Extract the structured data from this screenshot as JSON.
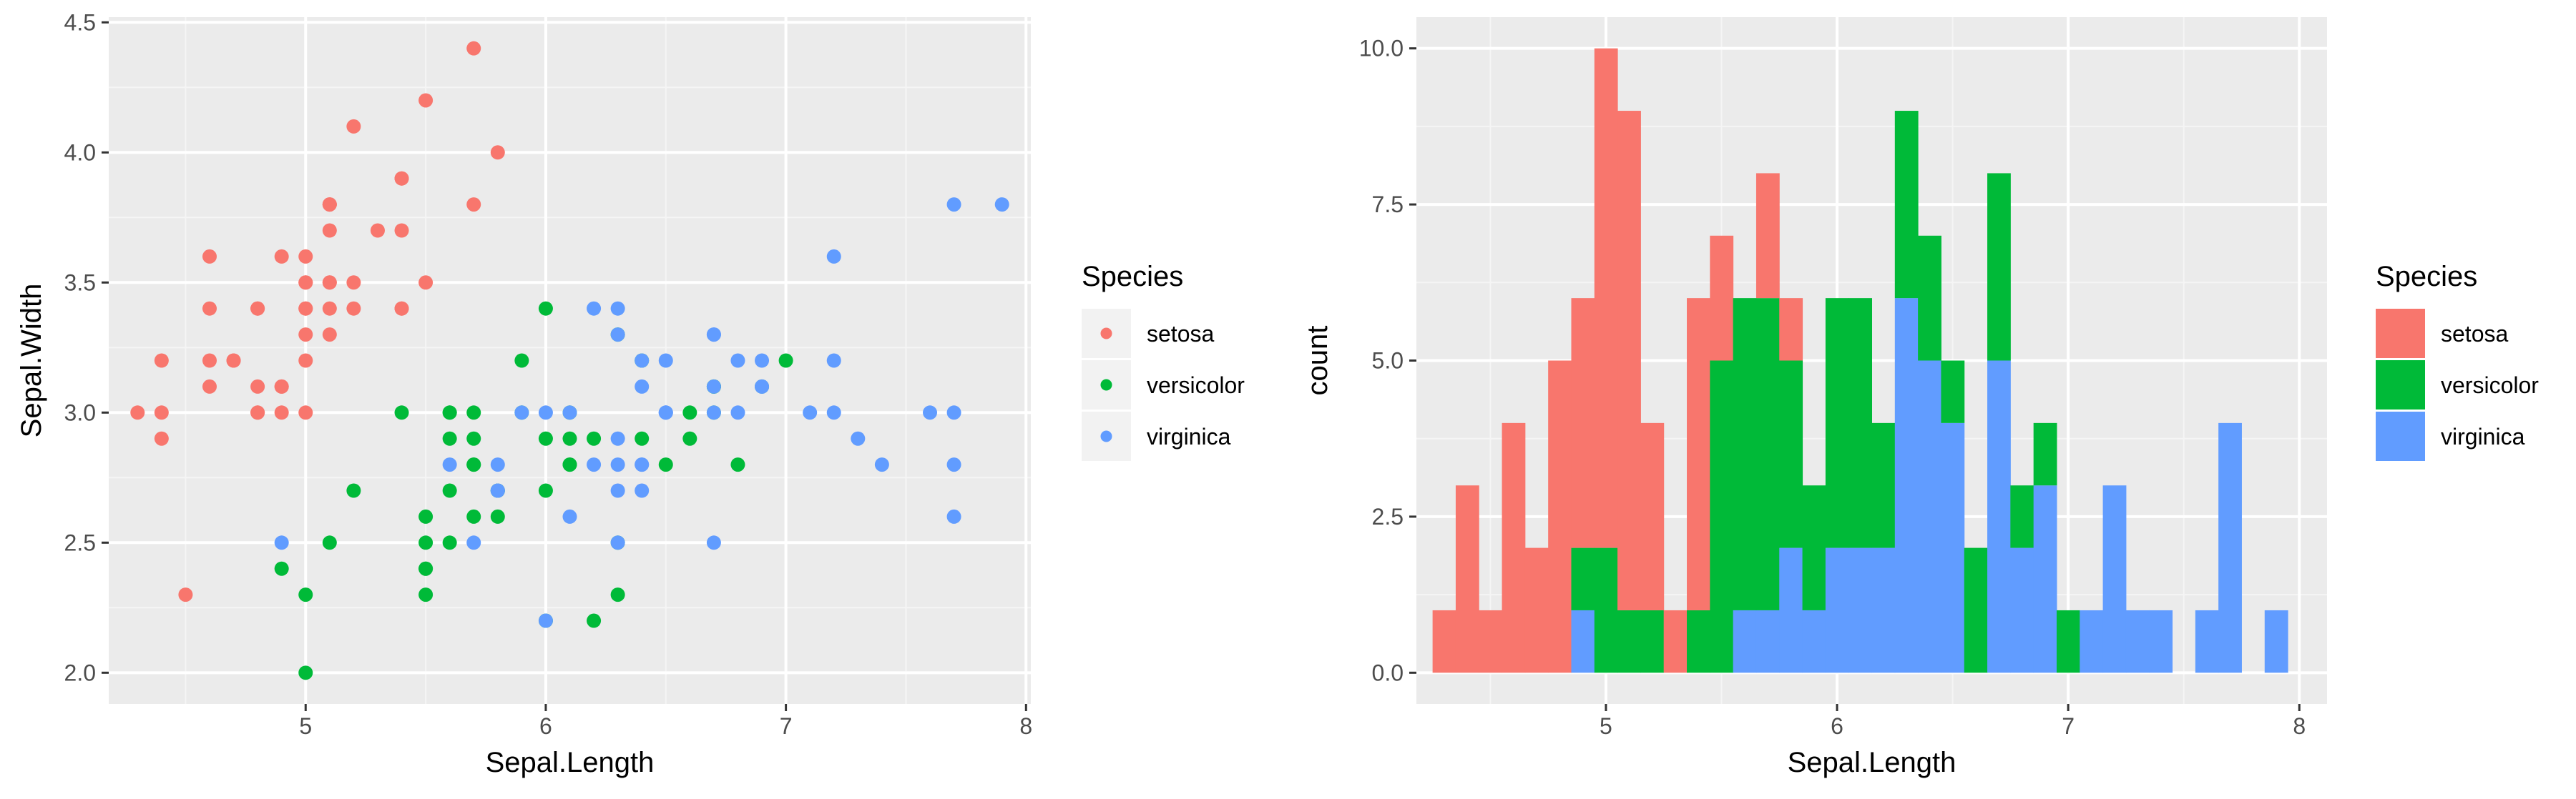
{
  "colors": {
    "setosa": "#F8766D",
    "versicolor": "#00BA38",
    "virginica": "#619CFF",
    "panel": "#EBEBEB",
    "grid_major": "#FFFFFF",
    "grid_minor": "#F5F5F5",
    "axis_text": "#4D4D4D",
    "title_text": "#000000",
    "legend_key": "#F2F2F2"
  },
  "legend": {
    "title": "Species",
    "entries": [
      "setosa",
      "versicolor",
      "virginica"
    ]
  },
  "chart_data": [
    {
      "type": "scatter",
      "title": "",
      "xlabel": "Sepal.Length",
      "ylabel": "Sepal.Width",
      "xlim": [
        4.18,
        8.02
      ],
      "ylim": [
        1.88,
        4.52
      ],
      "xticks": [
        5,
        6,
        7,
        8
      ],
      "xtick_labels": [
        "5",
        "6",
        "7",
        "8"
      ],
      "yticks": [
        2.0,
        2.5,
        3.0,
        3.5,
        4.0,
        4.5
      ],
      "ytick_labels": [
        "2.0",
        "2.5",
        "3.0",
        "3.5",
        "4.0",
        "4.5"
      ],
      "grid": true,
      "legend_placement": "right",
      "series": [
        {
          "name": "setosa",
          "x": [
            5.1,
            4.9,
            4.7,
            4.6,
            5.0,
            5.4,
            4.6,
            5.0,
            4.4,
            4.9,
            5.4,
            4.8,
            4.8,
            4.3,
            5.8,
            5.7,
            5.4,
            5.1,
            5.7,
            5.1,
            5.4,
            5.1,
            4.6,
            5.1,
            4.8,
            5.0,
            5.0,
            5.2,
            5.2,
            4.7,
            4.8,
            5.4,
            5.2,
            5.5,
            4.9,
            5.0,
            5.5,
            4.9,
            4.4,
            5.1,
            5.0,
            4.5,
            4.4,
            5.0,
            5.1,
            4.8,
            5.1,
            4.6,
            5.3,
            5.0
          ],
          "y": [
            3.5,
            3.0,
            3.2,
            3.1,
            3.6,
            3.9,
            3.4,
            3.4,
            2.9,
            3.1,
            3.7,
            3.4,
            3.0,
            3.0,
            4.0,
            4.4,
            3.9,
            3.5,
            3.8,
            3.8,
            3.4,
            3.7,
            3.6,
            3.3,
            3.4,
            3.0,
            3.4,
            3.5,
            3.4,
            3.2,
            3.1,
            3.4,
            4.1,
            4.2,
            3.1,
            3.2,
            3.5,
            3.6,
            3.0,
            3.4,
            3.5,
            2.3,
            3.2,
            3.5,
            3.8,
            3.0,
            3.8,
            3.2,
            3.7,
            3.3
          ]
        },
        {
          "name": "versicolor",
          "x": [
            7.0,
            6.4,
            6.9,
            5.5,
            6.5,
            5.7,
            6.3,
            4.9,
            6.6,
            5.2,
            5.0,
            5.9,
            6.0,
            6.1,
            5.6,
            6.7,
            5.6,
            5.8,
            6.2,
            5.6,
            5.9,
            6.1,
            6.3,
            6.1,
            6.4,
            6.6,
            6.8,
            6.7,
            6.0,
            5.7,
            5.5,
            5.5,
            5.8,
            6.0,
            5.4,
            6.0,
            6.7,
            6.3,
            5.6,
            5.5,
            5.5,
            6.1,
            5.8,
            5.0,
            5.6,
            5.7,
            5.7,
            6.2,
            5.1,
            5.7
          ],
          "y": [
            3.2,
            3.2,
            3.1,
            2.3,
            2.8,
            2.8,
            3.3,
            2.4,
            2.9,
            2.7,
            2.0,
            3.0,
            2.2,
            2.9,
            2.9,
            3.1,
            3.0,
            2.7,
            2.2,
            2.5,
            3.2,
            2.8,
            2.5,
            2.8,
            2.9,
            3.0,
            2.8,
            3.0,
            2.9,
            2.6,
            2.4,
            2.4,
            2.7,
            2.7,
            3.0,
            3.4,
            3.1,
            2.3,
            3.0,
            2.5,
            2.6,
            3.0,
            2.6,
            2.3,
            2.7,
            3.0,
            2.9,
            2.9,
            2.5,
            2.8
          ]
        },
        {
          "name": "virginica",
          "x": [
            6.3,
            5.8,
            7.1,
            6.3,
            6.5,
            7.6,
            4.9,
            7.3,
            6.7,
            7.2,
            6.5,
            6.4,
            6.8,
            5.7,
            5.8,
            6.4,
            6.5,
            7.7,
            7.7,
            6.0,
            6.9,
            5.6,
            7.7,
            6.3,
            6.7,
            7.2,
            6.2,
            6.1,
            6.4,
            7.2,
            7.4,
            7.9,
            6.4,
            6.3,
            6.1,
            7.7,
            6.3,
            6.4,
            6.0,
            6.9,
            6.7,
            6.9,
            5.8,
            6.8,
            6.7,
            6.7,
            6.3,
            6.5,
            6.2,
            5.9
          ],
          "y": [
            3.3,
            2.7,
            3.0,
            2.9,
            3.0,
            3.0,
            2.5,
            2.9,
            2.5,
            3.6,
            3.2,
            2.7,
            3.0,
            2.5,
            2.8,
            3.2,
            3.0,
            3.8,
            2.6,
            2.2,
            3.2,
            2.8,
            2.8,
            2.7,
            3.3,
            3.2,
            2.8,
            3.0,
            2.8,
            3.0,
            2.8,
            3.8,
            2.8,
            2.8,
            2.6,
            3.0,
            3.4,
            3.1,
            3.0,
            3.1,
            3.1,
            3.1,
            2.7,
            3.2,
            3.3,
            3.0,
            2.5,
            3.0,
            3.4,
            3.0
          ]
        }
      ]
    },
    {
      "type": "bar",
      "title": "",
      "xlabel": "Sepal.Length",
      "ylabel": "count",
      "stacking": "stacked",
      "bin_width": 0.1,
      "xlim": [
        4.18,
        8.12
      ],
      "ylim": [
        -0.5,
        10.5
      ],
      "xticks": [
        5,
        6,
        7,
        8
      ],
      "xtick_labels": [
        "5",
        "6",
        "7",
        "8"
      ],
      "yticks": [
        0,
        2.5,
        5,
        7.5,
        10
      ],
      "ytick_labels": [
        "0.0",
        "2.5",
        "5.0",
        "7.5",
        "10.0"
      ],
      "grid": true,
      "legend_placement": "right",
      "categories": [
        4.3,
        4.4,
        4.5,
        4.6,
        4.7,
        4.8,
        4.9,
        5.0,
        5.1,
        5.2,
        5.3,
        5.4,
        5.5,
        5.6,
        5.7,
        5.8,
        5.9,
        6.0,
        6.1,
        6.2,
        6.3,
        6.4,
        6.5,
        6.6,
        6.7,
        6.8,
        6.9,
        7.0,
        7.1,
        7.2,
        7.3,
        7.4,
        7.5,
        7.6,
        7.7,
        7.8,
        7.9
      ],
      "series": [
        {
          "name": "setosa",
          "values": [
            1,
            3,
            1,
            4,
            2,
            5,
            4,
            8,
            8,
            3,
            1,
            5,
            2,
            0,
            2,
            1,
            0,
            0,
            0,
            0,
            0,
            0,
            0,
            0,
            0,
            0,
            0,
            0,
            0,
            0,
            0,
            0,
            0,
            0,
            0,
            0,
            0
          ]
        },
        {
          "name": "versicolor",
          "values": [
            0,
            0,
            0,
            0,
            0,
            0,
            1,
            2,
            1,
            1,
            0,
            1,
            5,
            5,
            5,
            3,
            2,
            4,
            4,
            2,
            3,
            2,
            1,
            2,
            3,
            1,
            1,
            1,
            0,
            0,
            0,
            0,
            0,
            0,
            0,
            0,
            0
          ]
        },
        {
          "name": "virginica",
          "values": [
            0,
            0,
            0,
            0,
            0,
            0,
            1,
            0,
            0,
            0,
            0,
            0,
            0,
            1,
            1,
            2,
            1,
            2,
            2,
            2,
            6,
            5,
            4,
            0,
            5,
            2,
            3,
            0,
            1,
            3,
            1,
            1,
            0,
            1,
            4,
            0,
            1
          ]
        }
      ]
    }
  ]
}
